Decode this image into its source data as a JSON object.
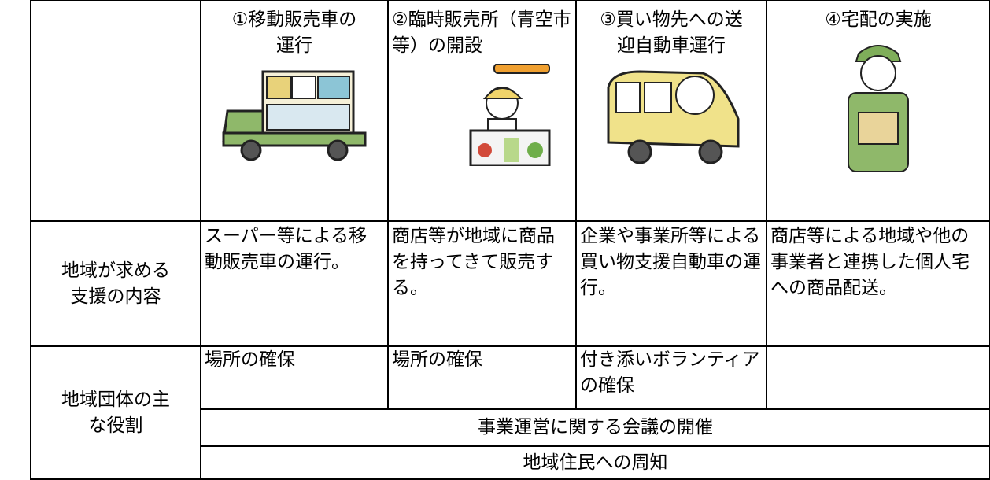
{
  "header": {
    "columns": [
      "①移動販売車の運行",
      "②臨時販売所（青空市等）の開設",
      "③買い物先への送迎自動車運行",
      "④宅配の実施"
    ]
  },
  "rows": [
    {
      "label": "地域が求める支援の内容",
      "cells": [
        "スーパー等による移動販売車の運行。",
        "商店等が地域に商品を持ってきて販売する。",
        "企業や事業所等による買い物支援自動車の運行。",
        "商店等による地域や他の事業者と連携した個人宅への商品配送。"
      ]
    }
  ],
  "roles": {
    "label": "地域団体の主な役割",
    "cells": [
      "場所の確保",
      "場所の確保",
      "付き添いボランティアの確保"
    ],
    "shared": [
      "事業運営に関する会議の開催",
      "地域住民への周知"
    ]
  }
}
